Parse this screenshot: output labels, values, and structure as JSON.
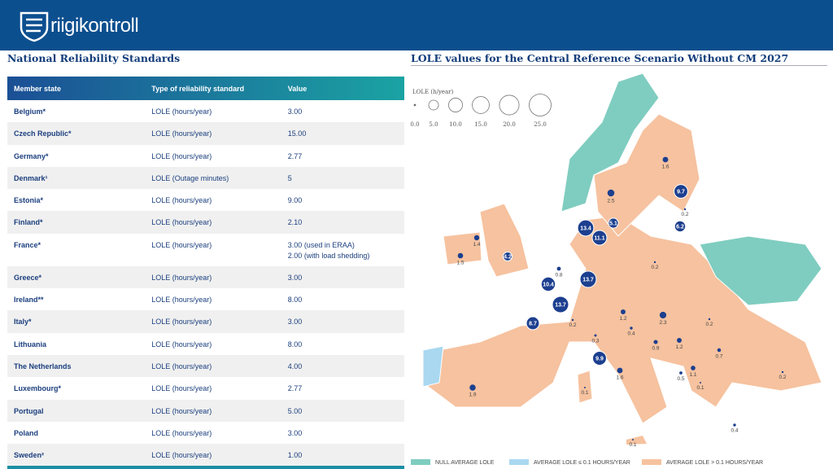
{
  "header": {
    "logo": "riigikontroll"
  },
  "table": {
    "title": "National Reliability Standards",
    "columns": [
      "Member state",
      "Type of reliability standard",
      "Value"
    ],
    "rows": [
      [
        "Belgium*",
        "LOLE (hours/year)",
        "3.00"
      ],
      [
        "Czech Republic*",
        "LOLE (hours/year)",
        "15.00"
      ],
      [
        "Germany*",
        "LOLE (hours/year)",
        "2.77"
      ],
      [
        "Denmark¹",
        "LOLE (Outage minutes)",
        "5"
      ],
      [
        "Estonia*",
        "LOLE (hours/year)",
        "9.00"
      ],
      [
        "Finland*",
        "LOLE (hours/year)",
        "2.10"
      ],
      [
        "France*",
        "LOLE (hours/year)",
        "3.00 (used in ERAA)\n2.00 (with load shedding)"
      ],
      [
        "Greece*",
        "LOLE (hours/year)",
        "3.00"
      ],
      [
        "Ireland**",
        "LOLE (hours/year)",
        "8.00"
      ],
      [
        "Italy*",
        "LOLE (hours/year)",
        "3.00"
      ],
      [
        "Lithuania",
        "LOLE (hours/year)",
        "8.00"
      ],
      [
        "The Netherlands",
        "LOLE (hours/year)",
        "4.00"
      ],
      [
        "Luxembourg*",
        "LOLE (hours/year)",
        "2.77"
      ],
      [
        "Portugal",
        "LOLE (hours/year)",
        "5.00"
      ],
      [
        "Poland",
        "LOLE (hours/year)",
        "3.00"
      ],
      [
        "Sweden²",
        "LOLE (hours/year)",
        "1.00"
      ]
    ]
  },
  "map": {
    "title": "LOLE values for the Central Reference Scenario Without CM 2027",
    "size_legend": {
      "title": "LOLE (h/year)",
      "entries": [
        {
          "value": 0,
          "label": "0.0"
        },
        {
          "value": 5,
          "label": "5.0"
        },
        {
          "value": 10,
          "label": "10.0"
        },
        {
          "value": 15,
          "label": "15.0"
        },
        {
          "value": 20,
          "label": "20.0"
        },
        {
          "value": 25,
          "label": "25.0"
        }
      ]
    },
    "bubbles": [
      1.6,
      2.5,
      9.7,
      0.2,
      13.4,
      5.1,
      11.1,
      6.2,
      1.4,
      1.5,
      4.2,
      0.2,
      0.8,
      10.4,
      13.7,
      13.7,
      1.2,
      2.3,
      0.2,
      8.7,
      0.2,
      0.4,
      0.3,
      0.9,
      1.2,
      0.7,
      9.9,
      1.1,
      0.5,
      1.6,
      0.1,
      0.2,
      1.9,
      0.1,
      0.4,
      0.1
    ],
    "legend": [
      "NULL AVERAGE LOLE",
      "AVERAGE LOLE ≤ 0.1 HOURS/YEAR",
      "AVERAGE LOLE > 0.1 HOURS/YEAR"
    ]
  }
}
